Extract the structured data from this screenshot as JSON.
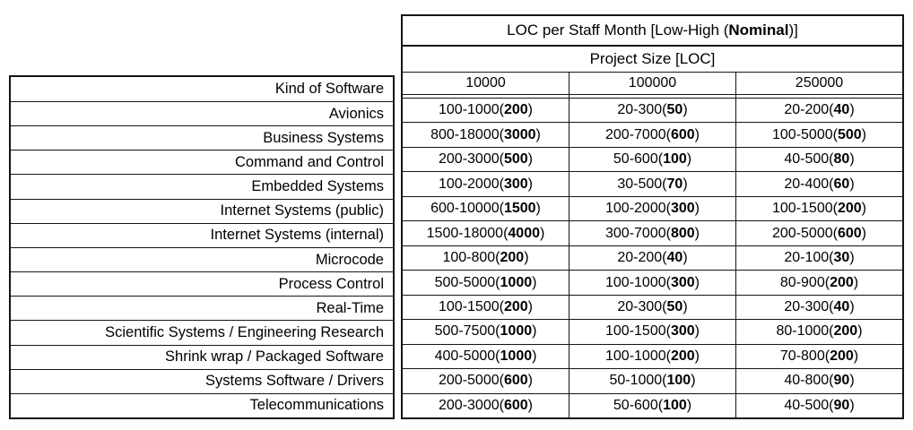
{
  "table": {
    "title_prefix": "LOC per Staff Month [Low-High (",
    "title_bold": "Nominal",
    "title_suffix": ")]",
    "subtitle": "Project Size [LOC]",
    "row_header": "Kind of Software",
    "size_columns": [
      "10000",
      "100000",
      "250000"
    ],
    "rows": [
      {
        "label": "Avionics",
        "cells": [
          {
            "range": "100-1000",
            "nominal": "200"
          },
          {
            "range": "20-300",
            "nominal": "50"
          },
          {
            "range": "20-200",
            "nominal": "40"
          }
        ]
      },
      {
        "label": "Business Systems",
        "cells": [
          {
            "range": "800-18000",
            "nominal": "3000"
          },
          {
            "range": "200-7000",
            "nominal": "600"
          },
          {
            "range": "100-5000",
            "nominal": "500"
          }
        ]
      },
      {
        "label": "Command and Control",
        "cells": [
          {
            "range": "200-3000",
            "nominal": "500"
          },
          {
            "range": "50-600",
            "nominal": "100"
          },
          {
            "range": "40-500",
            "nominal": "80"
          }
        ]
      },
      {
        "label": "Embedded Systems",
        "cells": [
          {
            "range": "100-2000",
            "nominal": "300"
          },
          {
            "range": "30-500",
            "nominal": "70"
          },
          {
            "range": "20-400",
            "nominal": "60"
          }
        ]
      },
      {
        "label": "Internet Systems (public)",
        "cells": [
          {
            "range": "600-10000",
            "nominal": "1500"
          },
          {
            "range": "100-2000",
            "nominal": "300"
          },
          {
            "range": "100-1500",
            "nominal": "200"
          }
        ]
      },
      {
        "label": "Internet Systems (internal)",
        "cells": [
          {
            "range": "1500-18000",
            "nominal": "4000"
          },
          {
            "range": "300-7000",
            "nominal": "800"
          },
          {
            "range": "200-5000",
            "nominal": "600"
          }
        ]
      },
      {
        "label": "Microcode",
        "cells": [
          {
            "range": "100-800",
            "nominal": "200"
          },
          {
            "range": "20-200",
            "nominal": "40"
          },
          {
            "range": "20-100",
            "nominal": "30"
          }
        ]
      },
      {
        "label": "Process Control",
        "cells": [
          {
            "range": "500-5000",
            "nominal": "1000"
          },
          {
            "range": "100-1000",
            "nominal": "300"
          },
          {
            "range": "80-900",
            "nominal": "200"
          }
        ]
      },
      {
        "label": "Real-Time",
        "cells": [
          {
            "range": "100-1500",
            "nominal": "200"
          },
          {
            "range": "20-300",
            "nominal": "50"
          },
          {
            "range": "20-300",
            "nominal": "40"
          }
        ]
      },
      {
        "label": "Scientific Systems / Engineering Research",
        "cells": [
          {
            "range": "500-7500",
            "nominal": "1000"
          },
          {
            "range": "100-1500",
            "nominal": "300"
          },
          {
            "range": "80-1000",
            "nominal": "200"
          }
        ]
      },
      {
        "label": "Shrink wrap / Packaged Software",
        "cells": [
          {
            "range": "400-5000",
            "nominal": "1000"
          },
          {
            "range": "100-1000",
            "nominal": "200"
          },
          {
            "range": "70-800",
            "nominal": "200"
          }
        ]
      },
      {
        "label": "Systems Software / Drivers",
        "cells": [
          {
            "range": "200-5000",
            "nominal": "600"
          },
          {
            "range": "50-1000",
            "nominal": "100"
          },
          {
            "range": "40-800",
            "nominal": "90"
          }
        ]
      },
      {
        "label": "Telecommunications",
        "cells": [
          {
            "range": "200-3000",
            "nominal": "600"
          },
          {
            "range": "50-600",
            "nominal": "100"
          },
          {
            "range": "40-500",
            "nominal": "90"
          }
        ]
      }
    ]
  },
  "colors": {
    "background": "#ffffff",
    "text": "#000000",
    "border": "#151515"
  }
}
